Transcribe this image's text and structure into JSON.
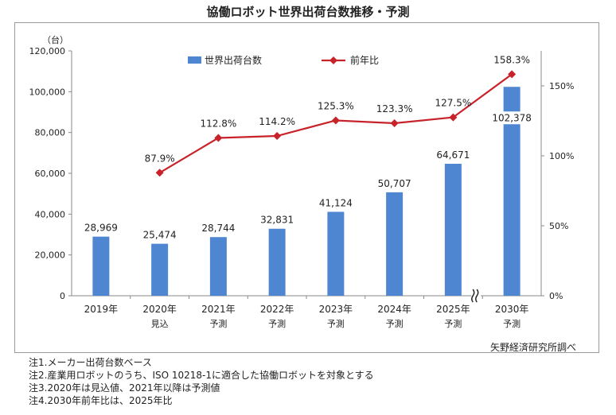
{
  "title": "協働ロボット世界出荷台数推移・予測",
  "source": "矢野経済研究所調べ",
  "notes": [
    "注1.メーカー出荷台数ベース",
    "注2.産業用ロボットのうち、ISO 10218-1に適合した協働ロボットを対象とする",
    "注3.2020年は見込値、2021年以降は予測値",
    "注4.2030年前年比は、2025年比"
  ],
  "chart_data": {
    "type": "bar",
    "y_unit": "（台）",
    "categories": [
      "2019年",
      "2020年",
      "2021年",
      "2022年",
      "2023年",
      "2024年",
      "2025年",
      "2030年"
    ],
    "category_sublabels": [
      "",
      "見込",
      "予測",
      "予測",
      "予測",
      "予測",
      "予測",
      "予測"
    ],
    "series": [
      {
        "name": "世界出荷台数",
        "type": "bar",
        "axis": "left",
        "color": "#4f86d2",
        "values": [
          28969,
          25474,
          28744,
          32831,
          41124,
          50707,
          64671,
          102378
        ],
        "labels": [
          "28,969",
          "25,474",
          "28,744",
          "32,831",
          "41,124",
          "50,707",
          "64,671",
          "102,378"
        ]
      },
      {
        "name": "前年比",
        "type": "line",
        "axis": "right",
        "color": "#c8232a",
        "values": [
          null,
          87.9,
          112.8,
          114.2,
          125.3,
          123.3,
          127.5,
          158.3
        ],
        "labels": [
          "",
          "87.9%",
          "112.8%",
          "114.2%",
          "125.3%",
          "123.3%",
          "127.5%",
          "158.3%"
        ]
      }
    ],
    "y_left": {
      "min": 0,
      "max": 120000,
      "step": 20000,
      "ticks": [
        "0",
        "20,000",
        "40,000",
        "60,000",
        "80,000",
        "100,000",
        "120,000"
      ]
    },
    "y_right": {
      "min": 0,
      "max": 175,
      "ticks": [
        0,
        50,
        100,
        150
      ],
      "tick_labels": [
        "0%",
        "50%",
        "100%",
        "150%"
      ]
    },
    "axis_break_after_category_index": 6,
    "legend_position": "top",
    "grid": false
  }
}
